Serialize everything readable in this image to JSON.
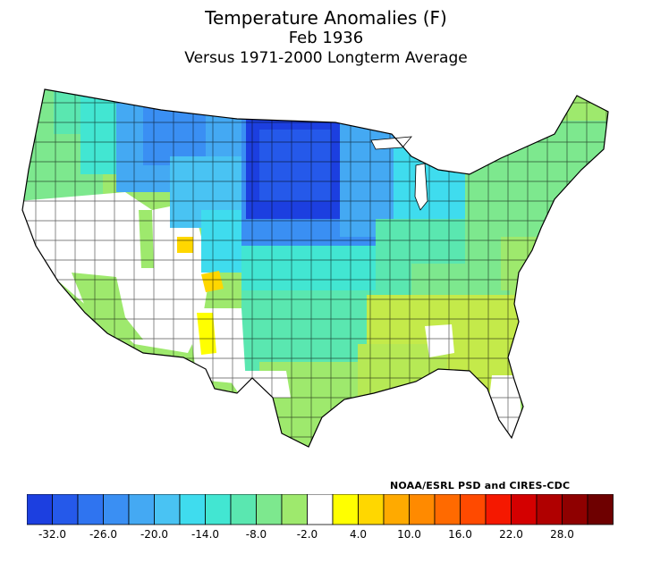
{
  "title": {
    "line1": "Temperature Anomalies (F)",
    "line2": "Feb 1936",
    "line3": "Versus 1971-2000 Longterm Average"
  },
  "credit": "NOAA/ESRL PSD and CIRES-CDC",
  "legend": {
    "colors": [
      "#1c3fe0",
      "#2559ea",
      "#2f74f0",
      "#3a8ff3",
      "#44a9f3",
      "#49c3f3",
      "#3fdcee",
      "#42e6d2",
      "#5ae7b0",
      "#7de88e",
      "#9ee96d",
      "#ffffff",
      "#ffff00",
      "#ffd700",
      "#ffaa00",
      "#ff8a00",
      "#ff6a00",
      "#ff4a00",
      "#f51800",
      "#d40000",
      "#b00000",
      "#8f0000",
      "#6e0000"
    ],
    "tick_labels": [
      "-32.0",
      "-26.0",
      "-20.0",
      "-14.0",
      "-8.0",
      "-2.0",
      "4.0",
      "10.0",
      "16.0",
      "22.0",
      "28.0"
    ]
  },
  "regions": [
    {
      "name": "northern-plains",
      "color": "#1c3fe0"
    },
    {
      "name": "upper-midwest",
      "color": "#3a8ff3"
    },
    {
      "name": "northern-rockies",
      "color": "#44a9f3"
    },
    {
      "name": "pacific-northwest",
      "color": "#7de88e"
    },
    {
      "name": "great-basin",
      "color": "#ffffff"
    },
    {
      "name": "southwest",
      "color": "#9ee96d"
    },
    {
      "name": "southern-plains",
      "color": "#5ae7b0"
    },
    {
      "name": "south-texas",
      "color": "#9ee96d"
    },
    {
      "name": "ohio-valley",
      "color": "#42e6d2"
    },
    {
      "name": "southeast",
      "color": "#c4ea4a"
    },
    {
      "name": "northeast",
      "color": "#7de88e"
    },
    {
      "name": "florida",
      "color": "#ffffff"
    },
    {
      "name": "four-corners-warm",
      "color": "#ffd700"
    }
  ]
}
